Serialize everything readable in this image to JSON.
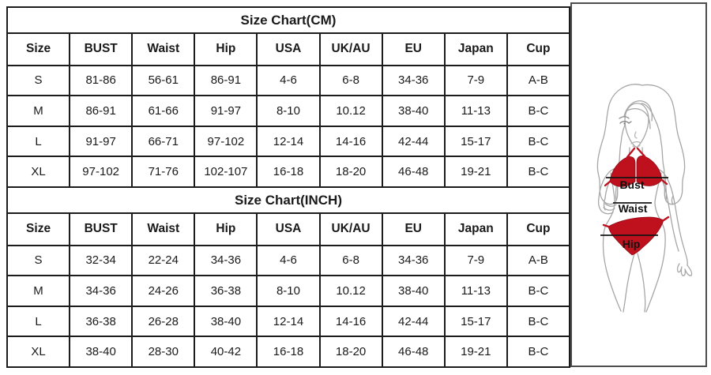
{
  "tables": [
    {
      "title": "Size Chart(CM)",
      "headers": [
        "Size",
        "BUST",
        "Waist",
        "Hip",
        "USA",
        "UK/AU",
        "EU",
        "Japan",
        "Cup"
      ],
      "rows": [
        [
          "S",
          "81-86",
          "56-61",
          "86-91",
          "4-6",
          "6-8",
          "34-36",
          "7-9",
          "A-B"
        ],
        [
          "M",
          "86-91",
          "61-66",
          "91-97",
          "8-10",
          "10.12",
          "38-40",
          "11-13",
          "B-C"
        ],
        [
          "L",
          "91-97",
          "66-71",
          "97-102",
          "12-14",
          "14-16",
          "42-44",
          "15-17",
          "B-C"
        ],
        [
          "XL",
          "97-102",
          "71-76",
          "102-107",
          "16-18",
          "18-20",
          "46-48",
          "19-21",
          "B-C"
        ]
      ]
    },
    {
      "title": "Size Chart(INCH)",
      "headers": [
        "Size",
        "BUST",
        "Waist",
        "Hip",
        "USA",
        "UK/AU",
        "EU",
        "Japan",
        "Cup"
      ],
      "rows": [
        [
          "S",
          "32-34",
          "22-24",
          "34-36",
          "4-6",
          "6-8",
          "34-36",
          "7-9",
          "A-B"
        ],
        [
          "M",
          "34-36",
          "24-26",
          "36-38",
          "8-10",
          "10.12",
          "38-40",
          "11-13",
          "B-C"
        ],
        [
          "L",
          "36-38",
          "26-28",
          "38-40",
          "12-14",
          "14-16",
          "42-44",
          "15-17",
          "B-C"
        ],
        [
          "XL",
          "38-40",
          "28-30",
          "40-42",
          "16-18",
          "18-20",
          "46-48",
          "19-21",
          "B-C"
        ]
      ]
    }
  ],
  "figure": {
    "labels": {
      "bust": "Bust",
      "waist": "Waist",
      "hip": "Hip"
    },
    "colors": {
      "bikini_red": "#bf101e",
      "line_art_gray": "#a6a6a6",
      "measure_line": "#141414",
      "table_border": "#1c1c1c"
    }
  }
}
